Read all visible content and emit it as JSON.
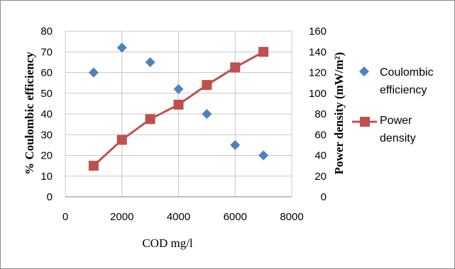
{
  "chart_data": {
    "type": "scatter",
    "x_label": "COD mg/l",
    "y_left_label": "% Coulombic efficiency",
    "y_right_label": "Power density (mW/m²)",
    "x_range": [
      0,
      8000
    ],
    "y_left_range": [
      0,
      80
    ],
    "y_right_range": [
      0,
      160
    ],
    "x_ticks": [
      "0",
      "2000",
      "4000",
      "6000",
      "8000"
    ],
    "y_left_ticks": [
      "0",
      "10",
      "20",
      "30",
      "40",
      "50",
      "60",
      "70",
      "80"
    ],
    "y_right_ticks": [
      "0",
      "20",
      "40",
      "60",
      "80",
      "100",
      "120",
      "140",
      "160"
    ],
    "grid": "vertical and horizontal gridlines",
    "legend_position": "right",
    "series": [
      {
        "name": "Coulombic efficiency",
        "type": "scatter",
        "axis": "left",
        "marker": "diamond",
        "color": "#4F81BD",
        "x": [
          1000,
          2000,
          3000,
          4000,
          5000,
          6000,
          7000
        ],
        "y": [
          60,
          72,
          65,
          52,
          40,
          25,
          20
        ]
      },
      {
        "name": "Power density",
        "type": "line",
        "axis": "right",
        "marker": "square",
        "color": "#C0504D",
        "x": [
          1000,
          2000,
          3000,
          4000,
          5000,
          6000,
          7000
        ],
        "y": [
          30,
          55,
          75,
          89,
          108,
          125,
          140
        ]
      }
    ],
    "legend": {
      "entry_1_line1": "Coulombic",
      "entry_1_line2": "efficiency",
      "entry_2_line1": "Power",
      "entry_2_line2": "density"
    }
  }
}
